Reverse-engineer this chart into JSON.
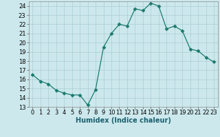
{
  "x": [
    0,
    1,
    2,
    3,
    4,
    5,
    6,
    7,
    8,
    9,
    10,
    11,
    12,
    13,
    14,
    15,
    16,
    17,
    18,
    19,
    20,
    21,
    22,
    23
  ],
  "y": [
    16.5,
    15.8,
    15.5,
    14.8,
    14.5,
    14.3,
    14.3,
    13.2,
    14.9,
    19.5,
    21.0,
    22.0,
    21.8,
    23.7,
    23.5,
    24.3,
    24.0,
    21.5,
    21.8,
    21.3,
    19.3,
    19.1,
    18.4,
    17.9
  ],
  "line_color": "#1a7a6e",
  "marker": "D",
  "marker_size": 2.5,
  "bg_color": "#cce8ec",
  "grid_color": "#aacdd4",
  "xlabel": "Humidex (Indice chaleur)",
  "xlim": [
    -0.5,
    23.5
  ],
  "ylim": [
    13,
    24.5
  ],
  "yticks": [
    13,
    14,
    15,
    16,
    17,
    18,
    19,
    20,
    21,
    22,
    23,
    24
  ],
  "xticks": [
    0,
    1,
    2,
    3,
    4,
    5,
    6,
    7,
    8,
    9,
    10,
    11,
    12,
    13,
    14,
    15,
    16,
    17,
    18,
    19,
    20,
    21,
    22,
    23
  ],
  "label_fontsize": 7,
  "tick_fontsize": 6
}
